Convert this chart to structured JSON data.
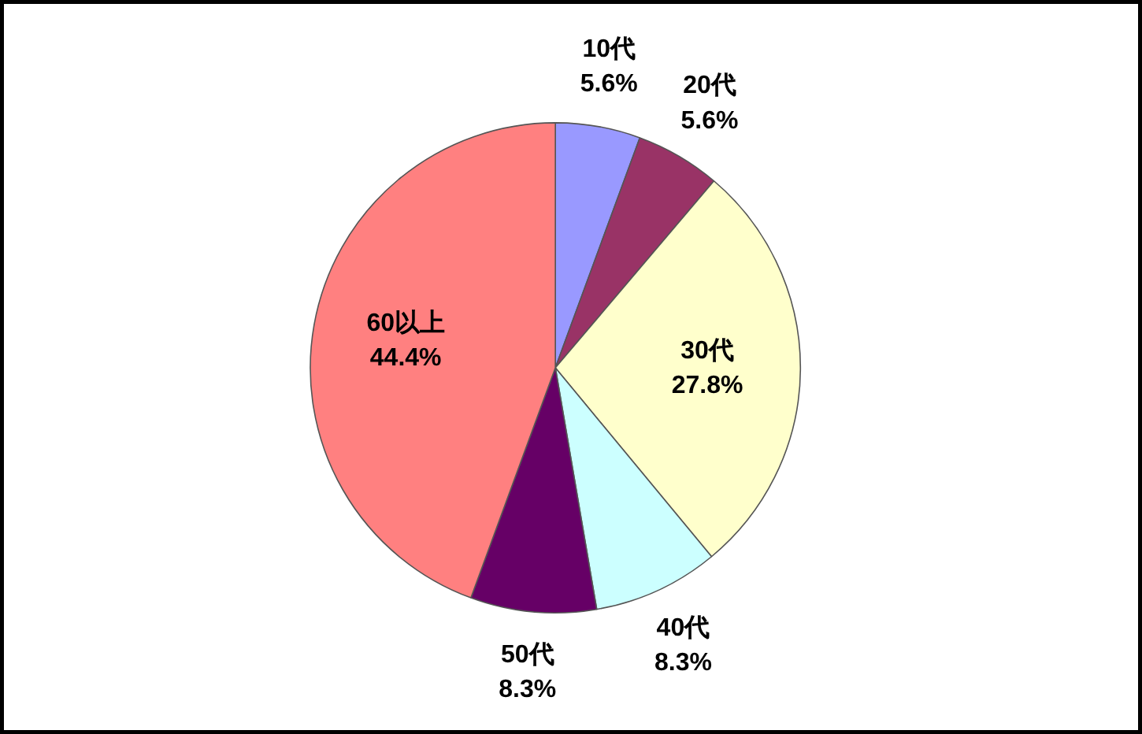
{
  "chart_data": {
    "type": "pie",
    "categories": [
      "10代",
      "20代",
      "30代",
      "40代",
      "50代",
      "60以上"
    ],
    "values": [
      5.6,
      5.6,
      27.8,
      8.3,
      8.3,
      44.4
    ],
    "colors": [
      "#9999ff",
      "#993366",
      "#ffffcc",
      "#ccffff",
      "#660066",
      "#ff8080"
    ],
    "value_labels": [
      "5.6%",
      "5.6%",
      "27.8%",
      "8.3%",
      "8.3%",
      "44.4%"
    ]
  }
}
